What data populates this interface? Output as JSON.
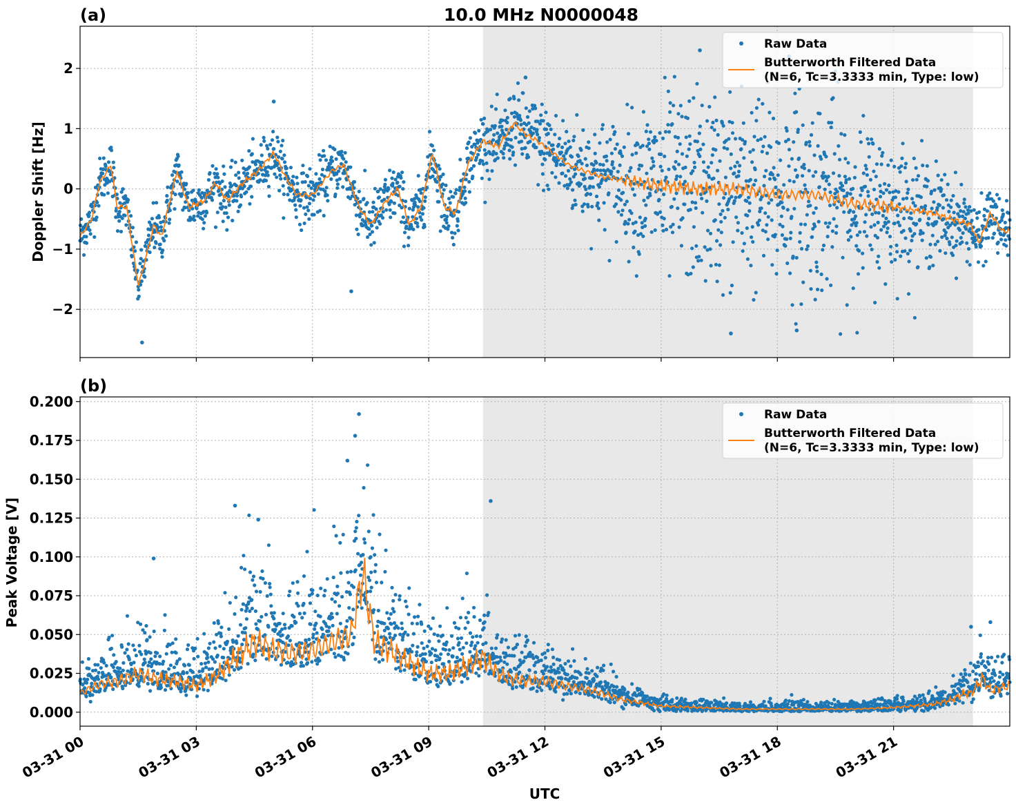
{
  "figure": {
    "title": "10.0 MHz N0000048",
    "xlabel": "UTC",
    "x_ticks": [
      "03-31 00",
      "03-31 03",
      "03-31 06",
      "03-31 09",
      "03-31 12",
      "03-31 15",
      "03-31 18",
      "03-31 21"
    ]
  },
  "colors": {
    "raw": "#1f77b4",
    "filtered": "#ff7f0e",
    "night_shade": "#e8e8e8",
    "grid": "#b0b0b0"
  },
  "chart_data": [
    {
      "type": "scatter",
      "panel_label": "(a)",
      "ylabel": "Doppler Shift [Hz]",
      "x_unit": "hours UTC on 03-31",
      "xlim": [
        0,
        24
      ],
      "ylim": [
        -2.8,
        2.7
      ],
      "y_ticks": [
        -2,
        -1,
        0,
        1,
        2
      ],
      "y_tick_labels": [
        "−2",
        "−1",
        "0",
        "1",
        "2"
      ],
      "grid": true,
      "shaded_interval_hours": [
        10.4,
        23.05
      ],
      "legend": {
        "placement": "top-right",
        "raw_label": "Raw Data",
        "filtered_label_line1": "Butterworth Filtered Data",
        "filtered_label_line2": "(N=6, Tc=3.3333 min, Type: low)"
      },
      "series": [
        {
          "name": "Butterworth Filtered Data",
          "kind": "line",
          "x": [
            0.0,
            0.3,
            0.5,
            0.8,
            0.95,
            1.2,
            1.5,
            1.6,
            1.9,
            2.1,
            2.5,
            2.8,
            3.2,
            3.5,
            3.8,
            4.2,
            4.6,
            5.0,
            5.3,
            5.6,
            6.0,
            6.5,
            6.8,
            7.2,
            7.5,
            7.9,
            8.2,
            8.5,
            8.8,
            9.1,
            9.4,
            9.7,
            10.0,
            10.4,
            10.8,
            11.2,
            11.5,
            11.8,
            12.2,
            12.6,
            13.0,
            13.5,
            14.0,
            15.0,
            16.0,
            17.0,
            18.0,
            19.0,
            20.0,
            21.0,
            22.0,
            22.5,
            23.0,
            23.2,
            23.5,
            23.8,
            24.0
          ],
          "y": [
            -0.8,
            -0.5,
            0.1,
            0.4,
            -0.3,
            -0.3,
            -1.6,
            -1.4,
            -0.6,
            -0.8,
            0.3,
            -0.3,
            -0.2,
            0.1,
            -0.2,
            0.1,
            0.3,
            0.6,
            0.2,
            -0.1,
            -0.1,
            0.3,
            0.4,
            -0.3,
            -0.6,
            -0.2,
            0.0,
            -0.6,
            -0.3,
            0.6,
            -0.3,
            -0.4,
            0.4,
            0.8,
            0.7,
            1.1,
            0.9,
            0.8,
            0.6,
            0.4,
            0.3,
            0.2,
            0.15,
            0.05,
            0.0,
            0.0,
            -0.1,
            -0.1,
            -0.25,
            -0.3,
            -0.4,
            -0.5,
            -0.6,
            -0.9,
            -0.4,
            -0.7,
            -0.7
          ]
        },
        {
          "name": "Raw Data",
          "kind": "points",
          "scatter_around_filtered": true,
          "spread_by_hour": [
            [
              0,
              0.35
            ],
            [
              10.4,
              0.45
            ],
            [
              14.0,
              0.9
            ],
            [
              15.0,
              1.4
            ],
            [
              19.0,
              1.5
            ],
            [
              21.0,
              1.0
            ],
            [
              23.0,
              0.5
            ],
            [
              24.0,
              0.4
            ]
          ],
          "extreme_values": [
            {
              "x": 1.6,
              "y": -2.55
            },
            {
              "x": 16.0,
              "y": 2.3
            },
            {
              "x": 18.3,
              "y": 2.2
            },
            {
              "x": 19.5,
              "y": 1.95
            },
            {
              "x": 11.5,
              "y": 1.85
            },
            {
              "x": 16.8,
              "y": -2.4
            },
            {
              "x": 18.5,
              "y": -2.35
            },
            {
              "x": 5.0,
              "y": 1.45
            },
            {
              "x": 7.0,
              "y": -1.7
            }
          ]
        }
      ]
    },
    {
      "type": "scatter",
      "panel_label": "(b)",
      "ylabel": "Peak Voltage [V]",
      "x_unit": "hours UTC on 03-31",
      "xlim": [
        0,
        24
      ],
      "ylim": [
        -0.009,
        0.203
      ],
      "y_ticks": [
        0.0,
        0.025,
        0.05,
        0.075,
        0.1,
        0.125,
        0.15,
        0.175,
        0.2
      ],
      "y_tick_labels": [
        "0.000",
        "0.025",
        "0.050",
        "0.075",
        "0.100",
        "0.125",
        "0.150",
        "0.175",
        "0.200"
      ],
      "grid": true,
      "shaded_interval_hours": [
        10.4,
        23.05
      ],
      "legend": {
        "placement": "top-right",
        "raw_label": "Raw Data",
        "filtered_label_line1": "Butterworth Filtered Data",
        "filtered_label_line2": "(N=6, Tc=3.3333 min, Type: low)"
      },
      "series": [
        {
          "name": "Butterworth Filtered Data",
          "kind": "line",
          "x": [
            0.0,
            0.5,
            1.0,
            1.5,
            1.9,
            2.5,
            3.0,
            3.5,
            4.0,
            4.5,
            5.0,
            5.5,
            6.0,
            6.5,
            7.0,
            7.3,
            7.6,
            8.0,
            8.5,
            9.0,
            9.5,
            10.0,
            10.4,
            10.8,
            11.0,
            11.5,
            12.0,
            12.5,
            13.0,
            13.5,
            14.0,
            14.5,
            15.0,
            16.0,
            17.0,
            18.0,
            19.0,
            20.0,
            21.0,
            21.5,
            22.0,
            22.5,
            22.8,
            23.0,
            23.3,
            23.5,
            24.0
          ],
          "y": [
            0.012,
            0.018,
            0.02,
            0.025,
            0.022,
            0.02,
            0.017,
            0.023,
            0.035,
            0.045,
            0.04,
            0.038,
            0.04,
            0.045,
            0.05,
            0.09,
            0.045,
            0.04,
            0.032,
            0.025,
            0.025,
            0.03,
            0.035,
            0.025,
            0.022,
            0.02,
            0.02,
            0.017,
            0.015,
            0.012,
            0.008,
            0.006,
            0.004,
            0.003,
            0.002,
            0.002,
            0.002,
            0.002,
            0.003,
            0.004,
            0.005,
            0.008,
            0.012,
            0.012,
            0.022,
            0.014,
            0.017
          ]
        },
        {
          "name": "Raw Data",
          "kind": "points",
          "scatter_around_filtered": true,
          "extreme_values": [
            {
              "x": 7.2,
              "y": 0.192
            },
            {
              "x": 7.1,
              "y": 0.178
            },
            {
              "x": 6.9,
              "y": 0.162
            },
            {
              "x": 10.6,
              "y": 0.136
            },
            {
              "x": 4.0,
              "y": 0.133
            },
            {
              "x": 4.6,
              "y": 0.124
            },
            {
              "x": 1.9,
              "y": 0.099
            },
            {
              "x": 23.0,
              "y": 0.055
            },
            {
              "x": 23.5,
              "y": 0.058
            }
          ]
        }
      ]
    }
  ]
}
